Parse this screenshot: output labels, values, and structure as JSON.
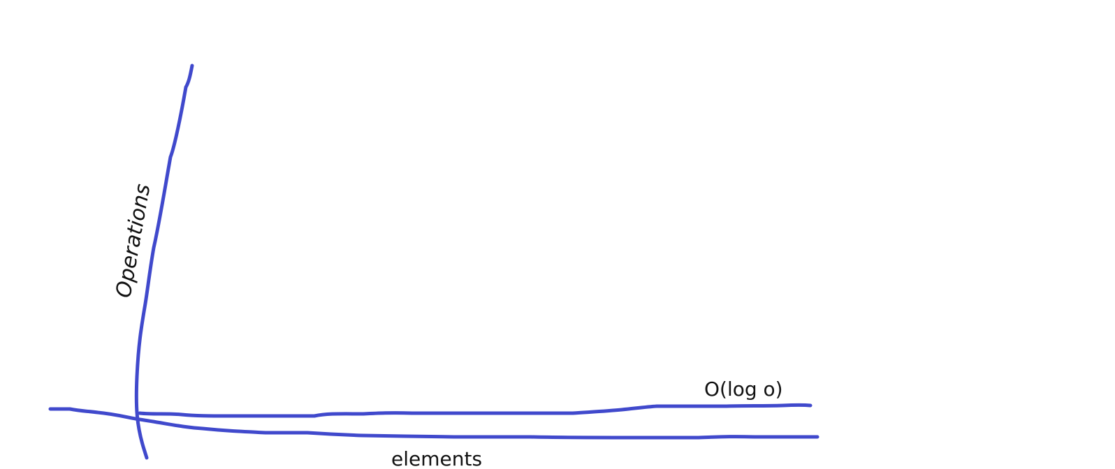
{
  "diagram": {
    "y_axis_label": "Operations",
    "x_axis_label": "elements",
    "curve_label": "O(log o)",
    "stroke_color": "#4049cc"
  }
}
